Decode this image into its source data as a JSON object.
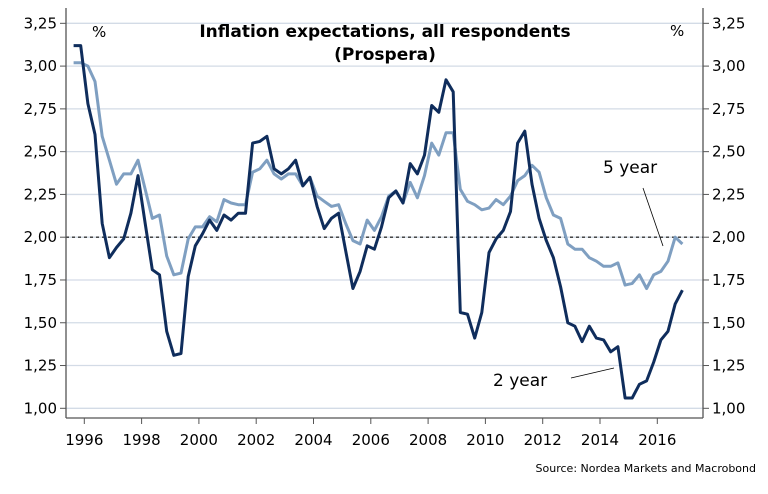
{
  "chart_data": {
    "type": "line",
    "title": "Inflation expectations, all respondents",
    "subtitle": "(Prospera)",
    "ylabel_left": "%",
    "ylabel_right": "%",
    "source": "Source: Nordea Markets and Macrobond",
    "xlim": [
      1995.4,
      2017.7
    ],
    "ylim": [
      1.0,
      3.25
    ],
    "x_ticks": [
      1996,
      1998,
      2000,
      2002,
      2004,
      2006,
      2008,
      2010,
      2012,
      2014,
      2016
    ],
    "x_tick_labels": [
      "1996",
      "1998",
      "2000",
      "2002",
      "2004",
      "2006",
      "2008",
      "2010",
      "2012",
      "2014",
      "2016"
    ],
    "y_ticks": [
      1.0,
      1.25,
      1.5,
      1.75,
      2.0,
      2.25,
      2.5,
      2.75,
      3.0,
      3.25
    ],
    "y_tick_labels": [
      "1,00",
      "1,25",
      "1,50",
      "1,75",
      "2,00",
      "2,25",
      "2,50",
      "2,75",
      "3,00",
      "3,25"
    ],
    "grid": true,
    "reference_line": 2.0,
    "x": [
      1995.625,
      1995.875,
      1996.125,
      1996.375,
      1996.625,
      1996.875,
      1997.125,
      1997.375,
      1997.625,
      1997.875,
      1998.125,
      1998.375,
      1998.625,
      1998.875,
      1999.125,
      1999.375,
      1999.625,
      1999.875,
      2000.125,
      2000.375,
      2000.625,
      2000.875,
      2001.125,
      2001.375,
      2001.625,
      2001.875,
      2002.125,
      2002.375,
      2002.625,
      2002.875,
      2003.125,
      2003.375,
      2003.625,
      2003.875,
      2004.125,
      2004.375,
      2004.625,
      2004.875,
      2005.125,
      2005.375,
      2005.625,
      2005.875,
      2006.125,
      2006.375,
      2006.625,
      2006.875,
      2007.125,
      2007.375,
      2007.625,
      2007.875,
      2008.125,
      2008.375,
      2008.625,
      2008.875,
      2009.125,
      2009.375,
      2009.625,
      2009.875,
      2010.125,
      2010.375,
      2010.625,
      2010.875,
      2011.125,
      2011.375,
      2011.625,
      2011.875,
      2012.125,
      2012.375,
      2012.625,
      2012.875,
      2013.125,
      2013.375,
      2013.625,
      2013.875,
      2014.125,
      2014.375,
      2014.625,
      2014.875,
      2015.125,
      2015.375,
      2015.625,
      2015.875,
      2016.125,
      2016.375,
      2016.625,
      2016.875
    ],
    "series": [
      {
        "name": "2 year",
        "color": "#0f2d5c",
        "values": [
          3.12,
          3.12,
          2.78,
          2.6,
          2.08,
          1.88,
          1.94,
          1.99,
          2.14,
          2.36,
          2.08,
          1.81,
          1.78,
          1.45,
          1.31,
          1.32,
          1.77,
          1.95,
          2.02,
          2.1,
          2.04,
          2.13,
          2.1,
          2.14,
          2.14,
          2.55,
          2.56,
          2.59,
          2.4,
          2.37,
          2.4,
          2.45,
          2.3,
          2.35,
          2.18,
          2.05,
          2.11,
          2.14,
          1.92,
          1.7,
          1.8,
          1.95,
          1.93,
          2.06,
          2.23,
          2.27,
          2.2,
          2.43,
          2.37,
          2.48,
          2.77,
          2.73,
          2.92,
          2.85,
          1.56,
          1.55,
          1.41,
          1.56,
          1.91,
          1.99,
          2.04,
          2.15,
          2.55,
          2.62,
          2.31,
          2.11,
          1.98,
          1.88,
          1.71,
          1.5,
          1.48,
          1.39,
          1.48,
          1.41,
          1.4,
          1.33,
          1.36,
          1.06,
          1.06,
          1.14,
          1.16,
          1.27,
          1.4,
          1.45,
          1.61,
          1.69
        ]
      },
      {
        "name": "5 year",
        "color": "#7f9fc1",
        "values": [
          3.02,
          3.02,
          3.0,
          2.91,
          2.59,
          2.45,
          2.31,
          2.37,
          2.37,
          2.45,
          2.28,
          2.11,
          2.13,
          1.89,
          1.78,
          1.79,
          1.99,
          2.06,
          2.06,
          2.12,
          2.09,
          2.22,
          2.2,
          2.19,
          2.19,
          2.38,
          2.4,
          2.45,
          2.37,
          2.34,
          2.37,
          2.37,
          2.3,
          2.35,
          2.24,
          2.21,
          2.18,
          2.19,
          2.08,
          1.98,
          1.96,
          2.1,
          2.04,
          2.12,
          2.24,
          2.27,
          2.2,
          2.32,
          2.23,
          2.36,
          2.55,
          2.48,
          2.61,
          2.61,
          2.28,
          2.21,
          2.19,
          2.16,
          2.17,
          2.22,
          2.19,
          2.24,
          2.33,
          2.36,
          2.42,
          2.38,
          2.23,
          2.13,
          2.11,
          1.96,
          1.93,
          1.93,
          1.88,
          1.86,
          1.83,
          1.83,
          1.85,
          1.72,
          1.73,
          1.78,
          1.7,
          1.78,
          1.8,
          1.86,
          2.0,
          1.96
        ]
      }
    ],
    "annotations": [
      "5 year",
      "2 year"
    ]
  }
}
